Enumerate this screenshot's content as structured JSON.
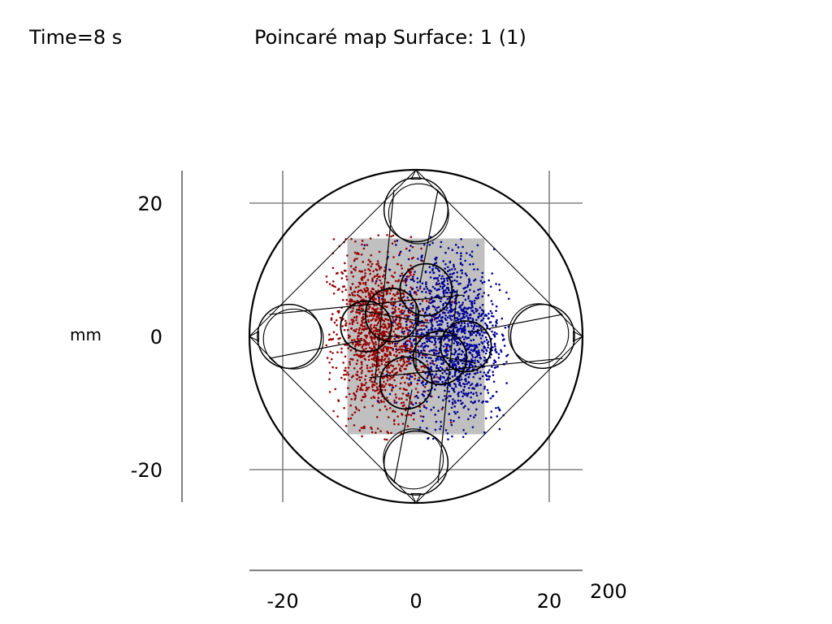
{
  "header": {
    "time_label": "Time=8 s",
    "title": "Poincaré map  Surface: 1 (1)"
  },
  "chart_data": {
    "type": "scatter",
    "title": "Poincaré map  Surface: 1 (1)",
    "annotation": "Time=8 s",
    "ylabel": "mm",
    "xlabel": "200",
    "xlim": [
      -25,
      25
    ],
    "ylim": [
      -25,
      25
    ],
    "xticks": [
      -20,
      0,
      20
    ],
    "yticks": [
      -20,
      0,
      20
    ],
    "xtick_labels": [
      "-20",
      "0",
      "20"
    ],
    "ytick_labels": [
      "20",
      "0",
      "-20"
    ],
    "grid": true,
    "legend": "none",
    "region": {
      "xrange": [
        -10.3,
        10.3
      ],
      "yrange": [
        -14.7,
        14.7
      ],
      "color": "#c0c0c0"
    },
    "series": [
      {
        "color": "#990000",
        "center": [
          -5.5,
          0
        ],
        "spread": [
          3.6,
          6.5
        ],
        "count": 1400
      },
      {
        "color": "#000099",
        "center": [
          5.5,
          0
        ],
        "spread": [
          3.6,
          6.5
        ],
        "count": 1400
      }
    ],
    "geometry": {
      "outer_circle_radius": 25,
      "quadrupole_tip_distance": 25,
      "pole_circle_center": 19,
      "pole_circle_radius": 4.8,
      "inner_rod_circles": [
        {
          "center": [
            -3.6,
            3.2
          ],
          "radius": 4.0
        },
        {
          "center": [
            3.6,
            -3.2
          ],
          "radius": 4.0
        },
        {
          "center": [
            1.5,
            7.0
          ],
          "radius": 3.9
        },
        {
          "center": [
            -1.5,
            -7.0
          ],
          "radius": 3.9
        },
        {
          "center": [
            -7.5,
            1.5
          ],
          "radius": 3.8
        },
        {
          "center": [
            7.5,
            -1.5
          ],
          "radius": 3.8
        }
      ]
    }
  }
}
